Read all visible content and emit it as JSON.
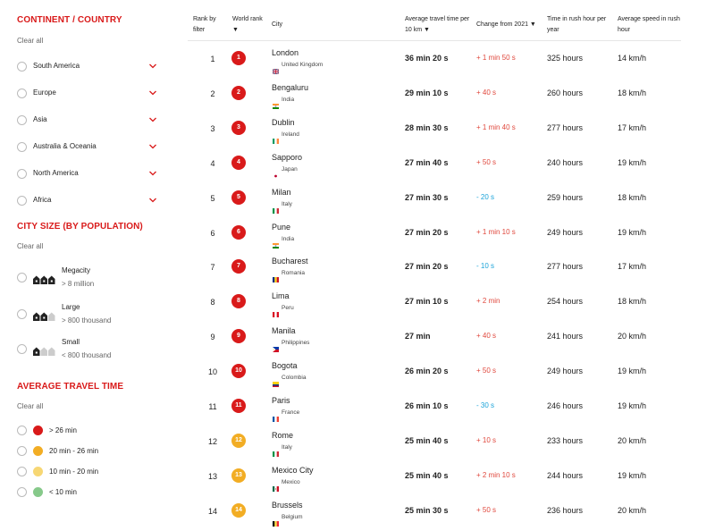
{
  "colors": {
    "accent": "#d91a1a",
    "red": "#d91a1a",
    "orange": "#f2ad24",
    "yellow": "#f7d774",
    "green": "#86c98a",
    "increase": "#e0483d",
    "decrease": "#1aa3d9"
  },
  "continent": {
    "title": "CONTINENT / COUNTRY",
    "clear": "Clear all",
    "items": [
      {
        "label": "South America"
      },
      {
        "label": "Europe"
      },
      {
        "label": "Asia"
      },
      {
        "label": "Australia & Oceania"
      },
      {
        "label": "North America"
      },
      {
        "label": "Africa"
      }
    ]
  },
  "city_size": {
    "title": "CITY SIZE (BY POPULATION)",
    "clear": "Clear all",
    "items": [
      {
        "label": "Megacity",
        "sub": "> 8 million"
      },
      {
        "label": "Large",
        "sub": "> 800 thousand"
      },
      {
        "label": "Small",
        "sub": "< 800 thousand"
      }
    ]
  },
  "travel_time": {
    "title": "AVERAGE TRAVEL TIME",
    "clear": "Clear all",
    "items": [
      {
        "label": "> 26 min",
        "color": "#d91a1a"
      },
      {
        "label": "20 min - 26 min",
        "color": "#f2ad24"
      },
      {
        "label": "10 min - 20 min",
        "color": "#f7d774"
      },
      {
        "label": "< 10 min",
        "color": "#86c98a"
      }
    ]
  },
  "table": {
    "headers": {
      "rank": [
        "Rank by",
        "filter"
      ],
      "world": [
        "World rank",
        "▼"
      ],
      "city": [
        "City"
      ],
      "avg": [
        "Average travel time per",
        "10 km ▼"
      ],
      "change": [
        "Change from 2021 ▼"
      ],
      "hours": [
        "Time in rush hour per",
        "year"
      ],
      "speed": [
        "Average speed in rush",
        "hour"
      ]
    },
    "rows": [
      {
        "rank": "1",
        "world": "1",
        "city": "London",
        "country": "United Kingdom",
        "flag": "uk",
        "time": "36 min 20 s",
        "change": "+ 1 min 50 s",
        "dir": "up",
        "hours": "325 hours",
        "speed": "14 km/h",
        "color": "#d91a1a"
      },
      {
        "rank": "2",
        "world": "2",
        "city": "Bengaluru",
        "country": "India",
        "flag": "india",
        "time": "29 min 10 s",
        "change": "+ 40 s",
        "dir": "up",
        "hours": "260 hours",
        "speed": "18 km/h",
        "color": "#d91a1a"
      },
      {
        "rank": "3",
        "world": "3",
        "city": "Dublin",
        "country": "Ireland",
        "flag": "ireland",
        "time": "28 min 30 s",
        "change": "+ 1 min 40 s",
        "dir": "up",
        "hours": "277 hours",
        "speed": "17 km/h",
        "color": "#d91a1a"
      },
      {
        "rank": "4",
        "world": "4",
        "city": "Sapporo",
        "country": "Japan",
        "flag": "japan",
        "time": "27 min 40 s",
        "change": "+ 50 s",
        "dir": "up",
        "hours": "240 hours",
        "speed": "19 km/h",
        "color": "#d91a1a"
      },
      {
        "rank": "5",
        "world": "5",
        "city": "Milan",
        "country": "Italy",
        "flag": "italy",
        "time": "27 min 30 s",
        "change": "- 20 s",
        "dir": "down",
        "hours": "259 hours",
        "speed": "18 km/h",
        "color": "#d91a1a"
      },
      {
        "rank": "6",
        "world": "6",
        "city": "Pune",
        "country": "India",
        "flag": "india",
        "time": "27 min 20 s",
        "change": "+ 1 min 10 s",
        "dir": "up",
        "hours": "249 hours",
        "speed": "19 km/h",
        "color": "#d91a1a"
      },
      {
        "rank": "7",
        "world": "7",
        "city": "Bucharest",
        "country": "Romania",
        "flag": "romania",
        "time": "27 min 20 s",
        "change": "- 10 s",
        "dir": "down",
        "hours": "277 hours",
        "speed": "17 km/h",
        "color": "#d91a1a"
      },
      {
        "rank": "8",
        "world": "8",
        "city": "Lima",
        "country": "Peru",
        "flag": "peru",
        "time": "27 min 10 s",
        "change": "+ 2 min",
        "dir": "up",
        "hours": "254 hours",
        "speed": "18 km/h",
        "color": "#d91a1a"
      },
      {
        "rank": "9",
        "world": "9",
        "city": "Manila",
        "country": "Philippines",
        "flag": "philippines",
        "time": "27 min",
        "change": "+ 40 s",
        "dir": "up",
        "hours": "241 hours",
        "speed": "20 km/h",
        "color": "#d91a1a"
      },
      {
        "rank": "10",
        "world": "10",
        "city": "Bogota",
        "country": "Colombia",
        "flag": "colombia",
        "time": "26 min 20 s",
        "change": "+ 50 s",
        "dir": "up",
        "hours": "249 hours",
        "speed": "19 km/h",
        "color": "#d91a1a"
      },
      {
        "rank": "11",
        "world": "11",
        "city": "Paris",
        "country": "France",
        "flag": "france",
        "time": "26 min 10 s",
        "change": "- 30 s",
        "dir": "down",
        "hours": "246 hours",
        "speed": "19 km/h",
        "color": "#d91a1a"
      },
      {
        "rank": "12",
        "world": "12",
        "city": "Rome",
        "country": "Italy",
        "flag": "italy",
        "time": "25 min 40 s",
        "change": "+ 10 s",
        "dir": "up",
        "hours": "233 hours",
        "speed": "20 km/h",
        "color": "#f2ad24"
      },
      {
        "rank": "13",
        "world": "13",
        "city": "Mexico City",
        "country": "Mexico",
        "flag": "mexico",
        "time": "25 min 40 s",
        "change": "+ 2 min 10 s",
        "dir": "up",
        "hours": "244 hours",
        "speed": "19 km/h",
        "color": "#f2ad24"
      },
      {
        "rank": "14",
        "world": "14",
        "city": "Brussels",
        "country": "Belgium",
        "flag": "belgium",
        "time": "25 min 30 s",
        "change": "+ 50 s",
        "dir": "up",
        "hours": "236 hours",
        "speed": "20 km/h",
        "color": "#f2ad24"
      }
    ]
  }
}
